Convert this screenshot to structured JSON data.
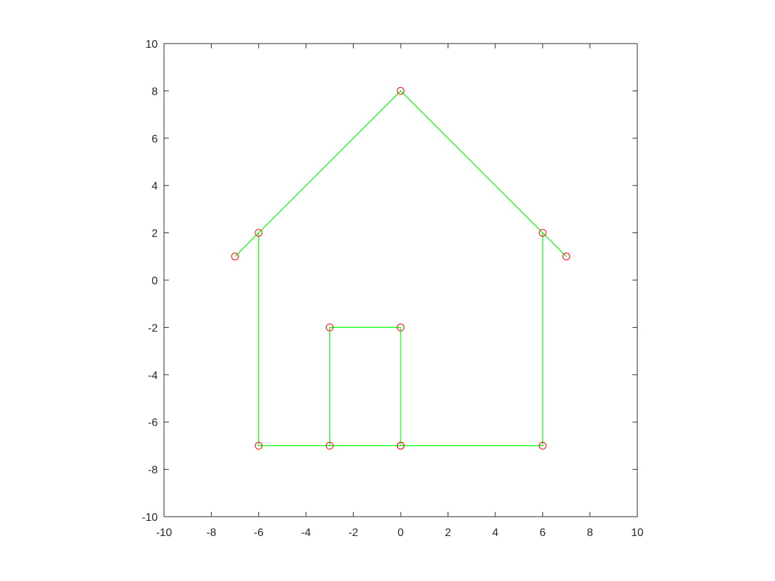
{
  "chart_data": {
    "type": "line",
    "title": "",
    "xlabel": "",
    "ylabel": "",
    "xlim": [
      -10,
      10
    ],
    "ylim": [
      -10,
      10
    ],
    "xticks": [
      -10,
      -8,
      -6,
      -4,
      -2,
      0,
      2,
      4,
      6,
      8,
      10
    ],
    "yticks": [
      -10,
      -8,
      -6,
      -4,
      -2,
      0,
      2,
      4,
      6,
      8,
      10
    ],
    "xtick_labels": [
      "-10",
      "-8",
      "-6",
      "-4",
      "-2",
      "0",
      "2",
      "4",
      "6",
      "8",
      "10"
    ],
    "ytick_labels": [
      "-10",
      "-8",
      "-6",
      "-4",
      "-2",
      "0",
      "2",
      "4",
      "6",
      "8",
      "10"
    ],
    "grid": false,
    "series": [
      {
        "line_color": "#00ff00",
        "marker_color": "#ff0000",
        "marker": "circle",
        "x": [
          -3,
          -3,
          0,
          0,
          -6,
          -6,
          -7,
          0,
          7,
          6,
          6,
          0
        ],
        "y": [
          -7,
          -2,
          -2,
          -7,
          -7,
          2,
          1,
          8,
          1,
          2,
          -7,
          -7
        ]
      }
    ]
  }
}
